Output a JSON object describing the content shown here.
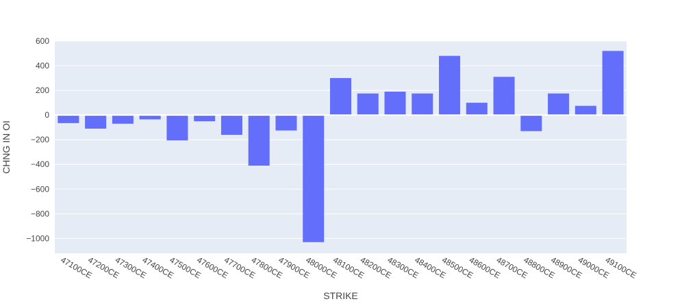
{
  "chart_data": {
    "type": "bar",
    "title": "",
    "xlabel": "STRIKE",
    "ylabel": "CHNG IN OI",
    "categories": [
      "47100CE",
      "47200CE",
      "47300CE",
      "47400CE",
      "47500CE",
      "47600CE",
      "47700CE",
      "47800CE",
      "47900CE",
      "48000CE",
      "48100CE",
      "48200CE",
      "48300CE",
      "48400CE",
      "48500CE",
      "48600CE",
      "48700CE",
      "48800CE",
      "48900CE",
      "49000CE",
      "49100CE"
    ],
    "values": [
      -65,
      -110,
      -70,
      -35,
      -205,
      -50,
      -160,
      -410,
      -125,
      -1030,
      300,
      175,
      190,
      175,
      480,
      100,
      310,
      -130,
      175,
      75,
      520
    ],
    "ylim": [
      -1120,
      600
    ],
    "yticks": [
      600,
      400,
      200,
      0,
      -200,
      -400,
      -600,
      -800,
      -1000
    ],
    "ytick_labels": [
      "600",
      "400",
      "200",
      "0",
      "−200",
      "−400",
      "−600",
      "−800",
      "−1000"
    ],
    "grid": true,
    "colors": {
      "bar": "#636efa",
      "plot_bg": "#e5ecf6",
      "grid": "#ffffff",
      "text": "#444444"
    }
  }
}
